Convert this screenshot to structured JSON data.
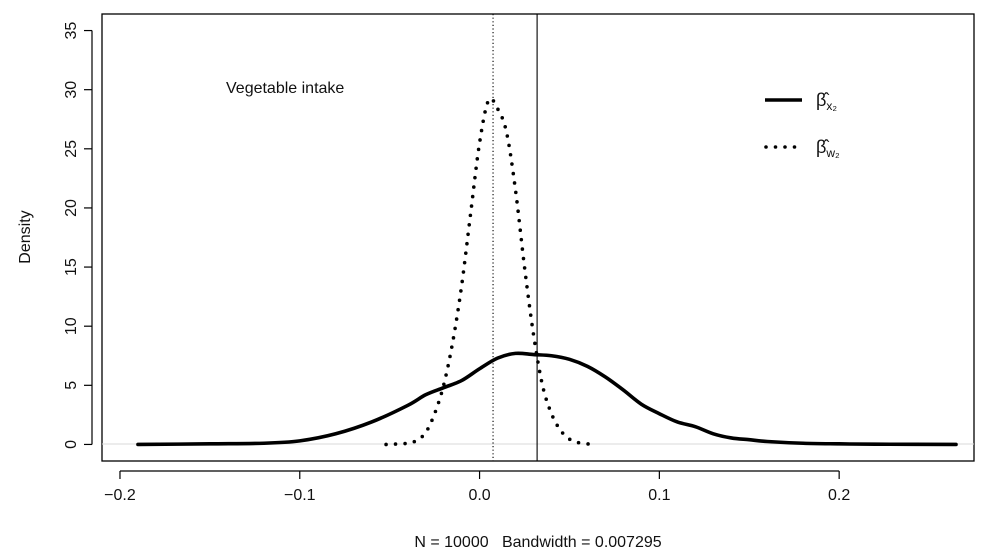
{
  "chart_data": {
    "type": "line",
    "title": "",
    "annotation": "Vegetable intake",
    "xlabel": "N = 10000   Bandwidth = 0.007295",
    "ylabel": "Density",
    "xlim": [
      -0.21,
      0.275
    ],
    "ylim": [
      -1.4,
      36.4
    ],
    "x_ticks": [
      -0.2,
      -0.1,
      0.0,
      0.1,
      0.2
    ],
    "x_tick_labels": [
      "−0.2",
      "−0.1",
      "0.0",
      "0.1",
      "0.2"
    ],
    "y_ticks": [
      0,
      5,
      10,
      15,
      20,
      25,
      30,
      35
    ],
    "y_tick_labels": [
      "0",
      "5",
      "10",
      "15",
      "20",
      "25",
      "30",
      "35"
    ],
    "grid": false,
    "legend_position": "top-right",
    "vertical_lines": [
      {
        "x": 0.0075,
        "style": "dotted"
      },
      {
        "x": 0.032,
        "style": "solid"
      }
    ],
    "series": [
      {
        "name": "β̂x2",
        "legend_symbol": "β̂",
        "legend_subscript": "x₂",
        "style": "solid",
        "color": "#000000",
        "x": [
          -0.19,
          -0.15,
          -0.12,
          -0.1,
          -0.08,
          -0.06,
          -0.04,
          -0.03,
          -0.02,
          -0.01,
          0.0,
          0.01,
          0.02,
          0.03,
          0.04,
          0.05,
          0.06,
          0.07,
          0.08,
          0.09,
          0.1,
          0.11,
          0.12,
          0.13,
          0.14,
          0.15,
          0.16,
          0.18,
          0.2,
          0.22,
          0.265
        ],
        "y": [
          0.0,
          0.05,
          0.1,
          0.3,
          0.9,
          1.9,
          3.3,
          4.2,
          4.8,
          5.4,
          6.4,
          7.3,
          7.7,
          7.6,
          7.5,
          7.2,
          6.6,
          5.7,
          4.6,
          3.4,
          2.6,
          1.9,
          1.5,
          0.9,
          0.55,
          0.4,
          0.25,
          0.1,
          0.05,
          0.02,
          0.0
        ]
      },
      {
        "name": "β̂w2",
        "legend_symbol": "β̂",
        "legend_subscript": "w₂",
        "style": "dotted",
        "color": "#000000",
        "x": [
          -0.052,
          -0.04,
          -0.035,
          -0.03,
          -0.025,
          -0.02,
          -0.015,
          -0.01,
          -0.005,
          0.0,
          0.005,
          0.01,
          0.015,
          0.02,
          0.025,
          0.03,
          0.035,
          0.04,
          0.045,
          0.05,
          0.055,
          0.063
        ],
        "y": [
          0.0,
          0.1,
          0.35,
          1.0,
          2.6,
          5.0,
          8.6,
          13.4,
          19.5,
          25.5,
          29.1,
          28.4,
          26.4,
          21.5,
          15.0,
          9.3,
          5.0,
          2.6,
          1.2,
          0.45,
          0.15,
          0.0
        ]
      }
    ]
  }
}
